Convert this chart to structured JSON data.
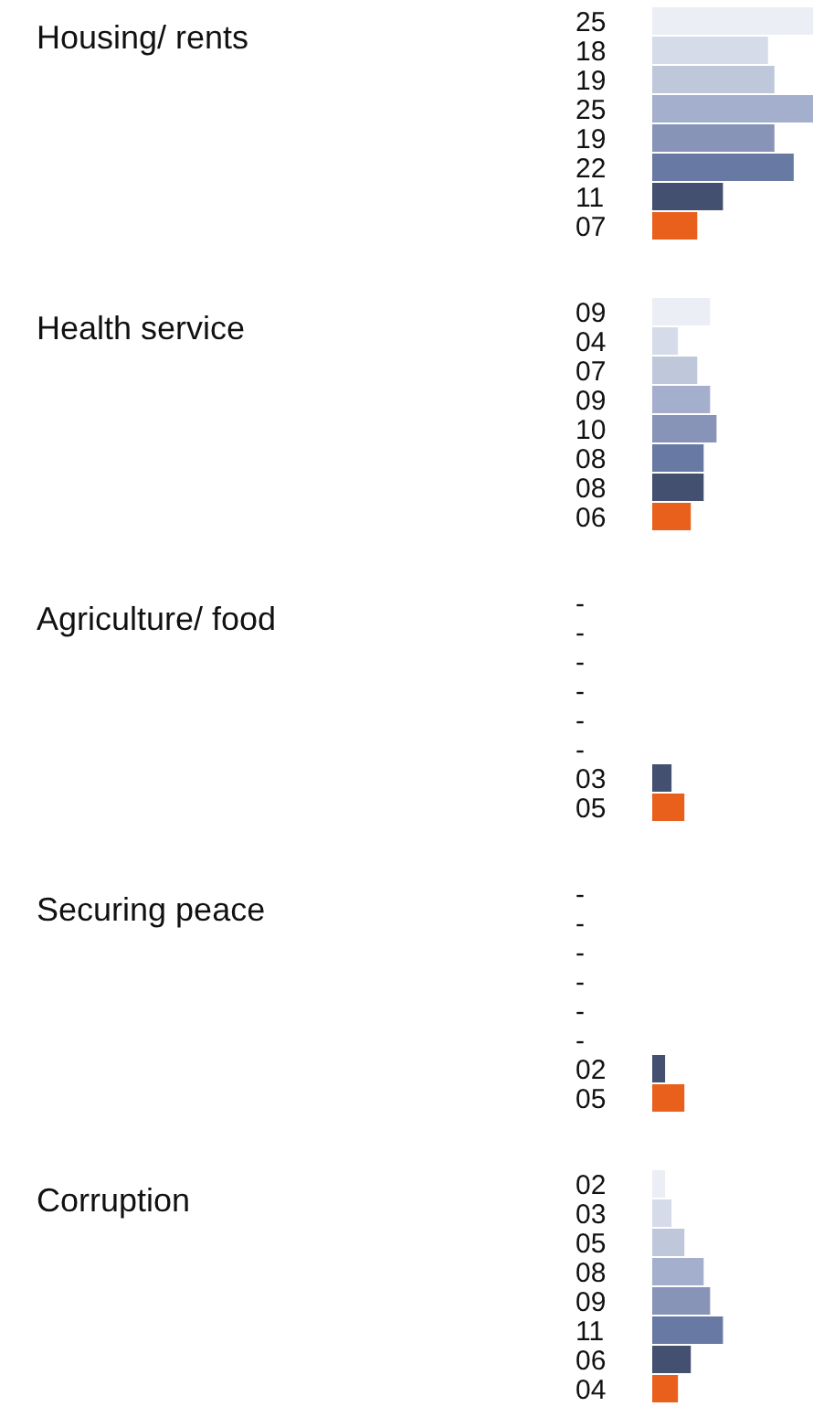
{
  "chart_data": {
    "type": "bar",
    "orientation": "horizontal",
    "categories": [
      "Housing/ rents",
      "Health service",
      "Agriculture/ food",
      "Securing peace",
      "Corruption"
    ],
    "series": [
      {
        "color": "#eceef5",
        "values": [
          25,
          9,
          null,
          null,
          2
        ],
        "value_labels": [
          "25",
          "09",
          "-",
          "-",
          "02"
        ]
      },
      {
        "color": "#d5dbe8",
        "values": [
          18,
          4,
          null,
          null,
          3
        ],
        "value_labels": [
          "18",
          "04",
          "-",
          "-",
          "03"
        ]
      },
      {
        "color": "#bfc7db",
        "values": [
          19,
          7,
          null,
          null,
          5
        ],
        "value_labels": [
          "19",
          "07",
          "-",
          "-",
          "05"
        ]
      },
      {
        "color": "#a3afcc",
        "values": [
          25,
          9,
          null,
          null,
          8
        ],
        "value_labels": [
          "25",
          "09",
          "-",
          "-",
          "08"
        ]
      },
      {
        "color": "#8794b8",
        "values": [
          19,
          10,
          null,
          null,
          9
        ],
        "value_labels": [
          "19",
          "10",
          "-",
          "-",
          "09"
        ]
      },
      {
        "color": "#6879a3",
        "values": [
          22,
          8,
          null,
          null,
          11
        ],
        "value_labels": [
          "22",
          "08",
          "-",
          "-",
          "11"
        ]
      },
      {
        "color": "#44506f",
        "values": [
          11,
          8,
          3,
          2,
          6
        ],
        "value_labels": [
          "11",
          "08",
          "03",
          "02",
          "06"
        ]
      },
      {
        "color": "#e8601c",
        "values": [
          7,
          6,
          5,
          5,
          4
        ],
        "value_labels": [
          "07",
          "06",
          "05",
          "05",
          "04"
        ]
      }
    ]
  }
}
